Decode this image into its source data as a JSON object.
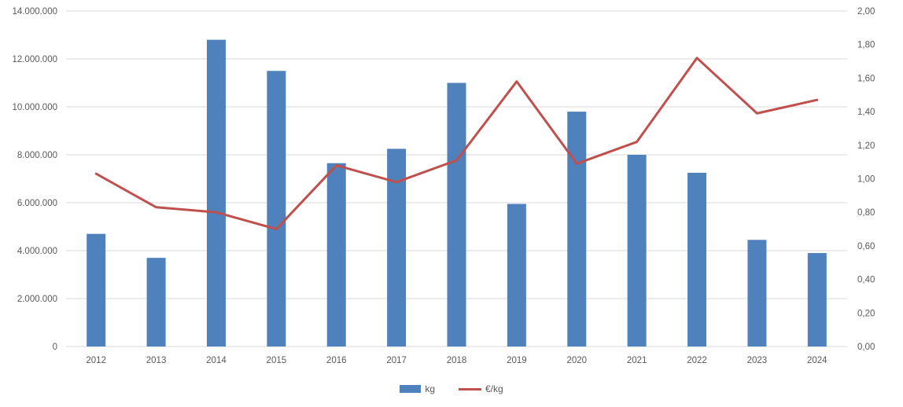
{
  "chart_data": {
    "type": "bar",
    "subtype": "combo-bar-line",
    "title": "",
    "xlabel": "",
    "ylabel_left": "",
    "ylabel_right": "",
    "grid": true,
    "legend_position": "bottom",
    "categories": [
      "2012",
      "2013",
      "2014",
      "2015",
      "2016",
      "2017",
      "2018",
      "2019",
      "2020",
      "2021",
      "2022",
      "2023",
      "2024"
    ],
    "series": [
      {
        "name": "kg",
        "type": "bar",
        "axis": "left",
        "color": "#4f81bd",
        "values": [
          4700000,
          3700000,
          12800000,
          11500000,
          7650000,
          8250000,
          11000000,
          5950000,
          9800000,
          8000000,
          7250000,
          4450000,
          3900000
        ]
      },
      {
        "name": "€/kg",
        "type": "line",
        "axis": "right",
        "color": "#c0504d",
        "values": [
          1.03,
          0.83,
          0.8,
          0.7,
          1.08,
          0.98,
          1.11,
          1.58,
          1.09,
          1.22,
          1.72,
          1.39,
          1.47
        ]
      }
    ],
    "left_axis": {
      "min": 0,
      "max": 14000000,
      "tick_step": 2000000,
      "tick_labels": [
        "0",
        "2.000.000",
        "4.000.000",
        "6.000.000",
        "8.000.000",
        "10.000.000",
        "12.000.000",
        "14.000.000"
      ]
    },
    "right_axis": {
      "min": 0,
      "max": 2,
      "tick_step": 0.2,
      "tick_labels": [
        "0,00",
        "0,20",
        "0,40",
        "0,60",
        "0,80",
        "1,00",
        "1,20",
        "1,40",
        "1,60",
        "1,80",
        "2,00"
      ]
    },
    "colors": {
      "gridline": "#d9d9d9",
      "axis_line": "#d9d9d9",
      "tick_text": "#595959",
      "background": "#ffffff"
    }
  }
}
